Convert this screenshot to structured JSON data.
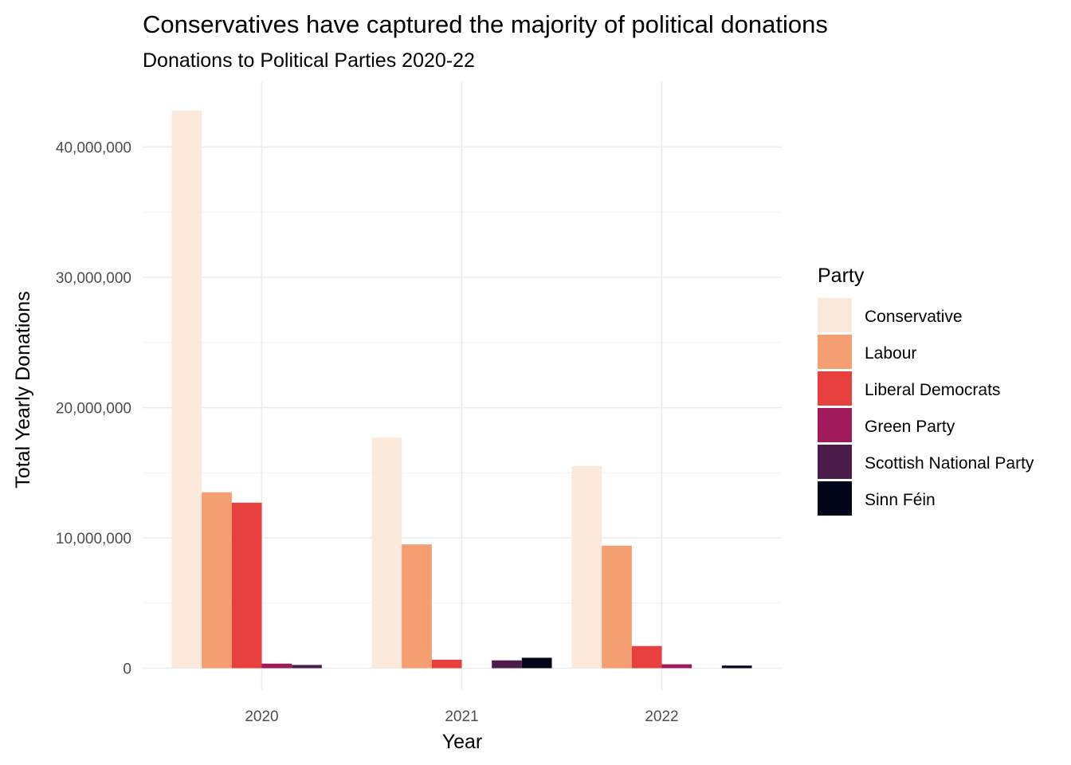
{
  "chart_data": {
    "type": "bar",
    "title": "Conservatives have captured the majority of political donations",
    "subtitle": "Donations to Political Parties 2020-22",
    "xlabel": "Year",
    "ylabel": "Total Yearly Donations",
    "categories": [
      "2020",
      "2021",
      "2022"
    ],
    "ylim": [
      0,
      44000000
    ],
    "yticks": [
      0,
      10000000,
      20000000,
      30000000,
      40000000
    ],
    "ytick_labels": [
      "0",
      "10,000,000",
      "20,000,000",
      "30,000,000",
      "40,000,000"
    ],
    "grid": true,
    "legend_title": "Party",
    "legend_position": "right",
    "series": [
      {
        "name": "Conservative",
        "color": "#FBEADC",
        "values": [
          42800000,
          17700000,
          15500000
        ]
      },
      {
        "name": "Labour",
        "color": "#F59E72",
        "values": [
          13500000,
          9500000,
          9400000
        ]
      },
      {
        "name": "Liberal Democrats",
        "color": "#E83F3F",
        "values": [
          12700000,
          650000,
          1700000
        ]
      },
      {
        "name": "Green Party",
        "color": "#A11A5B",
        "values": [
          350000,
          0,
          300000
        ]
      },
      {
        "name": "Scottish National Party",
        "color": "#4C1D4B",
        "values": [
          250000,
          600000,
          0
        ]
      },
      {
        "name": "Sinn Féin",
        "color": "#03051A",
        "values": [
          0,
          800000,
          200000
        ]
      }
    ]
  }
}
